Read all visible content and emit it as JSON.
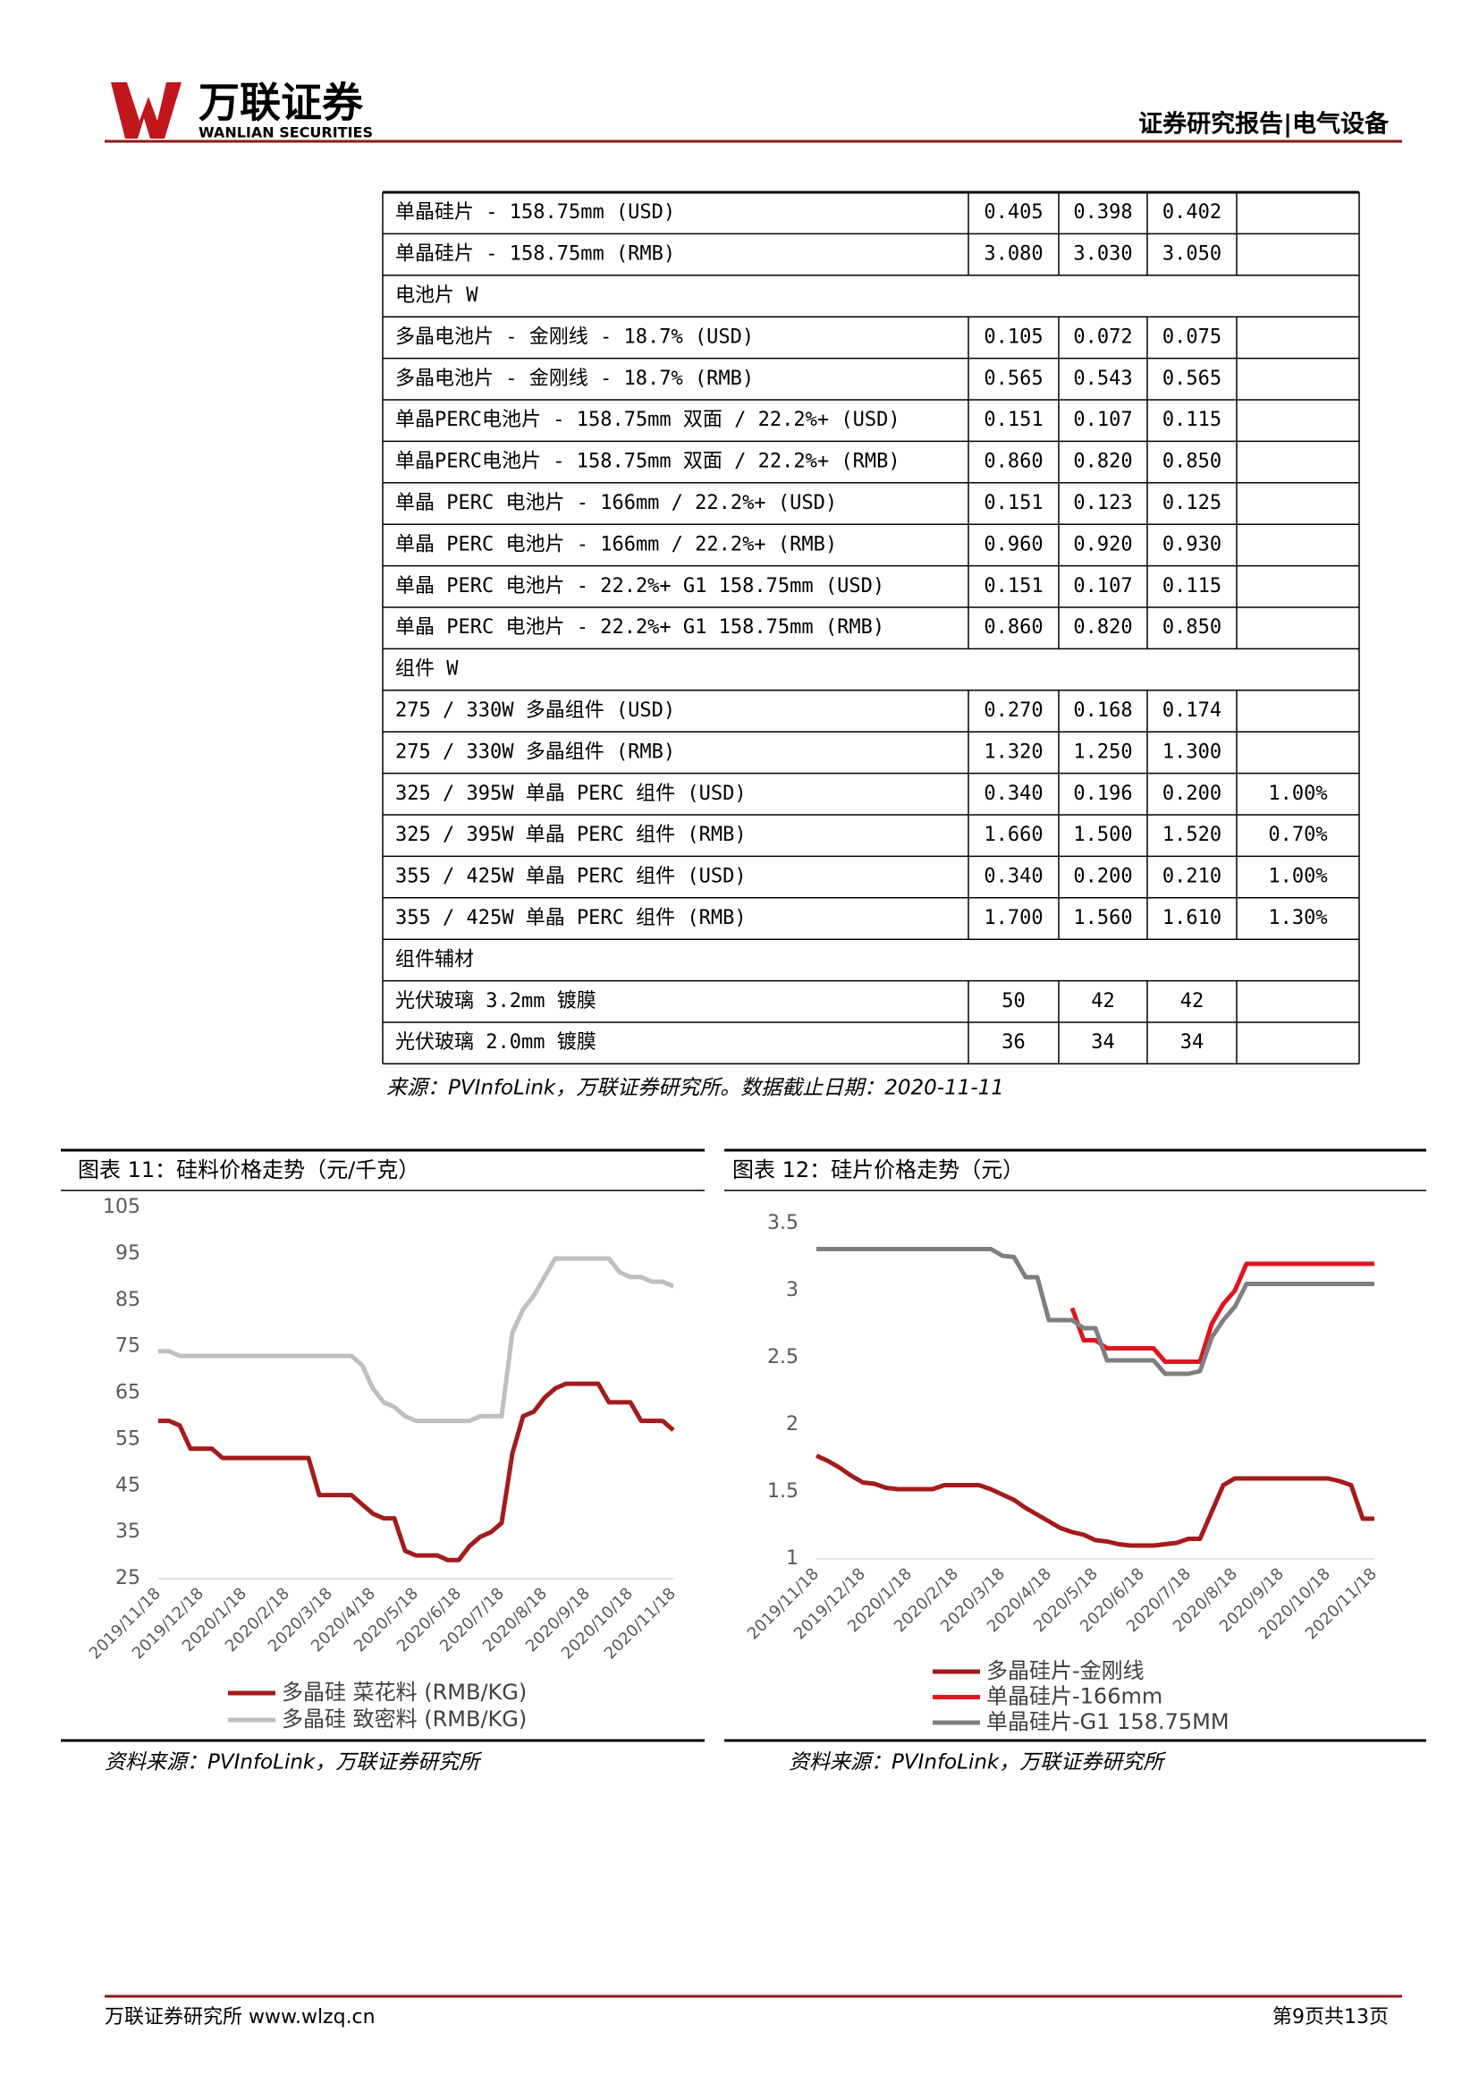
{
  "header": {
    "brand": "万联证券",
    "brand_en": "WANLIAN SECURITIES",
    "report": "证券研究报告|电气设备"
  },
  "table": {
    "rows": [
      [
        "单晶硅片 -  158.75mm (USD)",
        "0.405",
        "0.398",
        "0.402"
      ],
      [
        "单晶硅片 -  158.75mm (RMB)",
        "3.080",
        "3.030",
        "3.050"
      ],
      [
        "电池片 W"
      ],
      [
        "多晶电池片 - 金刚线 - 18.7% (USD)",
        "0.105",
        "0.072",
        "0.075"
      ],
      [
        "多晶电池片 - 金刚线 - 18.7% (RMB)",
        "0.565",
        "0.543",
        "0.565"
      ],
      [
        "单晶PERC电池片 - 158.75mm 双面 / 22.2%+ (USD)",
        "0.151",
        "0.107",
        "0.115"
      ],
      [
        "单晶PERC电池片 - 158.75mm 双面 / 22.2%+ (RMB)",
        "0.860",
        "0.820",
        "0.850"
      ],
      [
        "单晶 PERC 电池片 - 166mm / 22.2%+ (USD)",
        "0.151",
        "0.123",
        "0.125"
      ],
      [
        "单晶 PERC 电池片 - 166mm / 22.2%+ (RMB)",
        "0.960",
        "0.920",
        "0.930"
      ],
      [
        "单晶 PERC 电池片  - 22.2%+ G1 158.75mm (USD)",
        "0.151",
        "0.107",
        "0.115"
      ],
      [
        "单晶 PERC 电池片  - 22.2%+ G1 158.75mm (RMB)",
        "0.860",
        "0.820",
        "0.850"
      ],
      [
        "组件 W"
      ],
      [
        "275 / 330W 多晶组件 (USD)",
        "0.270",
        "0.168",
        "0.174"
      ],
      [
        "275 / 330W 多晶组件 (RMB)",
        "1.320",
        "1.250",
        "1.300"
      ],
      [
        "325 / 395W 单晶 PERC 组件 (USD)",
        "0.340",
        "0.196",
        "0.200",
        "1.00%"
      ],
      [
        "325 / 395W 单晶 PERC 组件 (RMB)",
        "1.660",
        "1.500",
        "1.520",
        "0.70%"
      ],
      [
        "355 / 425W 单晶 PERC 组件 (USD)",
        "0.340",
        "0.200",
        "0.210",
        "1.00%"
      ],
      [
        "355 / 425W 单晶 PERC 组件 (RMB)",
        "1.700",
        "1.560",
        "1.610",
        "1.30%"
      ],
      [
        "组件辅材"
      ],
      [
        "光伏玻璃 3.2mm 镀膜",
        "50",
        "42",
        "42"
      ],
      [
        "光伏玻璃 2.0mm 镀膜",
        "36",
        "34",
        "34"
      ]
    ],
    "source": "来源：PVInfoLink，万联证券研究所。数据截止日期：2020-11-11"
  },
  "chart_data": [
    {
      "type": "line",
      "title": "图表 11：硅料价格走势（元/千克）",
      "source": "资料来源：PVInfoLink，万联证券研究所",
      "categories": [
        "2019/11/18",
        null,
        null,
        null,
        "2019/12/18",
        null,
        null,
        null,
        "2020/1/18",
        null,
        null,
        null,
        "2020/2/18",
        null,
        null,
        null,
        "2020/3/18",
        null,
        null,
        null,
        "2020/4/18",
        null,
        null,
        null,
        "2020/5/18",
        null,
        null,
        null,
        "2020/6/18",
        null,
        null,
        null,
        "2020/7/18",
        null,
        null,
        null,
        "2020/8/18",
        null,
        null,
        null,
        "2020/9/18",
        null,
        null,
        null,
        "2020/10/18",
        null,
        null,
        null,
        "2020/11/18"
      ],
      "ylim": [
        25,
        105
      ],
      "yticks": [
        25,
        35,
        45,
        55,
        65,
        75,
        85,
        95,
        105
      ],
      "series": [
        {
          "name": "多晶硅 菜花料 (RMB/KG)",
          "color": "#a31b1b",
          "values": [
            59,
            59,
            58,
            53,
            53,
            53,
            51,
            51,
            51,
            51,
            51,
            51,
            51,
            51,
            51,
            43,
            43,
            43,
            43,
            41,
            39,
            38,
            38,
            31,
            30,
            30,
            30,
            29,
            29,
            32,
            34,
            35,
            37,
            52,
            60,
            61,
            64,
            66,
            67,
            67,
            67,
            67,
            63,
            63,
            63,
            59,
            59,
            59,
            57
          ]
        },
        {
          "name": "多晶硅 致密料 (RMB/KG)",
          "color": "#bfbfbf",
          "values": [
            74,
            74,
            73,
            73,
            73,
            73,
            73,
            73,
            73,
            73,
            73,
            73,
            73,
            73,
            73,
            73,
            73,
            73,
            73,
            71,
            66,
            63,
            62,
            60,
            59,
            59,
            59,
            59,
            59,
            59,
            60,
            60,
            60,
            78,
            83,
            86,
            90,
            94,
            94,
            94,
            94,
            94,
            94,
            91,
            90,
            90,
            89,
            89,
            88
          ]
        }
      ]
    },
    {
      "type": "line",
      "title": "图表 12：硅片价格走势（元）",
      "source": "资料来源：PVInfoLink，万联证券研究所",
      "categories": [
        "2019/11/18",
        null,
        null,
        null,
        "2019/12/18",
        null,
        null,
        null,
        "2020/1/18",
        null,
        null,
        null,
        "2020/2/18",
        null,
        null,
        null,
        "2020/3/18",
        null,
        null,
        null,
        "2020/4/18",
        null,
        null,
        null,
        "2020/5/18",
        null,
        null,
        null,
        "2020/6/18",
        null,
        null,
        null,
        "2020/7/18",
        null,
        null,
        null,
        "2020/8/18",
        null,
        null,
        null,
        "2020/9/18",
        null,
        null,
        null,
        "2020/10/18",
        null,
        null,
        null,
        "2020/11/18"
      ],
      "ylim": [
        1,
        3.5
      ],
      "yticks": [
        1,
        1.5,
        2,
        2.5,
        3,
        3.5
      ],
      "series": [
        {
          "name": "多晶硅片-金刚线",
          "color": "#a31b1b",
          "values": [
            1.77,
            1.73,
            1.68,
            1.62,
            1.57,
            1.56,
            1.53,
            1.52,
            1.52,
            1.52,
            1.52,
            1.55,
            1.55,
            1.55,
            1.55,
            1.52,
            1.48,
            1.44,
            1.38,
            1.33,
            1.28,
            1.23,
            1.2,
            1.18,
            1.14,
            1.13,
            1.11,
            1.1,
            1.1,
            1.1,
            1.11,
            1.12,
            1.15,
            1.15,
            1.35,
            1.55,
            1.6,
            1.6,
            1.6,
            1.6,
            1.6,
            1.6,
            1.6,
            1.6,
            1.6,
            1.58,
            1.55,
            1.3,
            1.3
          ]
        },
        {
          "name": "单晶硅片-166mm",
          "color": "#e0141e",
          "values": [
            null,
            null,
            null,
            null,
            null,
            null,
            null,
            null,
            null,
            null,
            null,
            null,
            null,
            null,
            null,
            null,
            null,
            null,
            null,
            null,
            null,
            null,
            2.87,
            2.63,
            2.63,
            2.57,
            2.57,
            2.57,
            2.57,
            2.57,
            2.47,
            2.47,
            2.47,
            2.47,
            2.75,
            2.9,
            3.0,
            3.2,
            3.2,
            3.2,
            3.2,
            3.2,
            3.2,
            3.2,
            3.2,
            3.2,
            3.2,
            3.2,
            3.2
          ]
        },
        {
          "name": "单晶硅片-G1 158.75MM",
          "color": "#7f7f7f",
          "values": [
            3.31,
            3.31,
            3.31,
            3.31,
            3.31,
            3.31,
            3.31,
            3.31,
            3.31,
            3.31,
            3.31,
            3.31,
            3.31,
            3.31,
            3.31,
            3.31,
            3.26,
            3.25,
            3.1,
            3.1,
            2.78,
            2.78,
            2.78,
            2.72,
            2.72,
            2.48,
            2.48,
            2.48,
            2.48,
            2.48,
            2.38,
            2.38,
            2.38,
            2.4,
            2.65,
            2.78,
            2.88,
            3.05,
            3.05,
            3.05,
            3.05,
            3.05,
            3.05,
            3.05,
            3.05,
            3.05,
            3.05,
            3.05,
            3.05
          ]
        }
      ]
    }
  ],
  "footer": {
    "left": "万联证券研究所 www.wlzq.cn",
    "right": "第9页共13页"
  }
}
